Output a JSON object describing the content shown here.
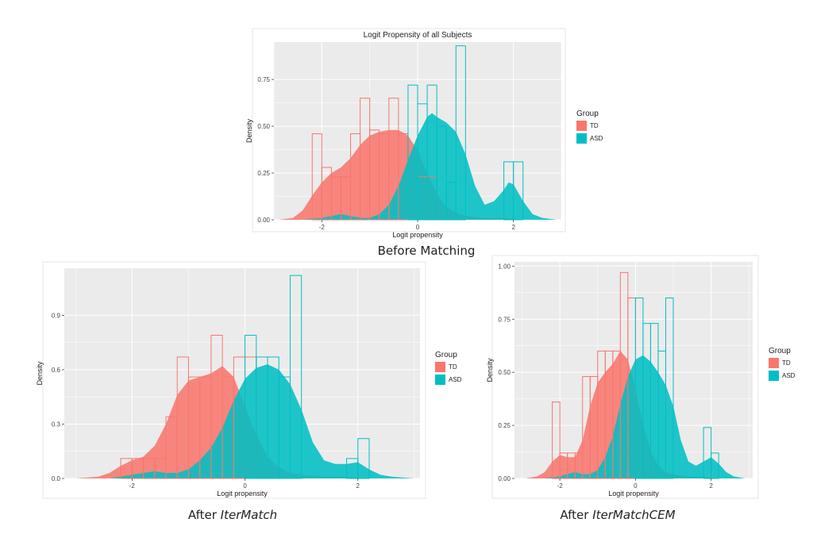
{
  "colors": {
    "TD": "#F8766D",
    "ASD": "#00BFC4",
    "panel": "#EBEBEB",
    "grid": "#FFFFFF"
  },
  "captions": {
    "top": "Before Matching",
    "bottom_left_prefix": "After ",
    "bottom_left_italic": "IterMatch",
    "bottom_right_prefix": "After ",
    "bottom_right_italic": "IterMatchCEM"
  },
  "chart_data": [
    {
      "type": "histogram+density",
      "title": "Logit Propensity of all Subjects",
      "xlabel": "Logit propensity",
      "ylabel": "Density",
      "xlim": [
        -3.0,
        3.0
      ],
      "ylim": [
        0,
        0.95
      ],
      "xticks": [
        -2,
        0,
        2
      ],
      "xtick_labels": [
        "-2",
        "0",
        "2"
      ],
      "yticks": [
        0.0,
        0.25,
        0.5,
        0.75
      ],
      "ytick_labels": [
        "0.00",
        "0.25",
        "0.50",
        "0.75"
      ],
      "legend": {
        "title": "Group",
        "entries": [
          "TD",
          "ASD"
        ],
        "placement": "right"
      },
      "bin_width": 0.2,
      "series": [
        {
          "name": "TD",
          "hist_x": [
            -2.1,
            -1.9,
            -1.7,
            -1.5,
            -1.3,
            -1.1,
            -0.9,
            -0.7,
            -0.5,
            -0.3,
            0.1,
            0.3
          ],
          "hist_y": [
            0.46,
            0.28,
            0.23,
            0.23,
            0.46,
            0.65,
            0.48,
            0.46,
            0.65,
            0.46,
            0.23,
            0.23
          ],
          "density_x": [
            -2.9,
            -2.6,
            -2.4,
            -2.2,
            -2.0,
            -1.8,
            -1.6,
            -1.4,
            -1.2,
            -1.0,
            -0.8,
            -0.6,
            -0.4,
            -0.2,
            0.0,
            0.2,
            0.4,
            0.6,
            0.8,
            1.0,
            1.4,
            1.8,
            2.2,
            2.6
          ],
          "density_y": [
            0.0,
            0.01,
            0.05,
            0.13,
            0.2,
            0.25,
            0.28,
            0.33,
            0.4,
            0.45,
            0.47,
            0.48,
            0.48,
            0.45,
            0.37,
            0.25,
            0.14,
            0.07,
            0.04,
            0.02,
            0.01,
            0.01,
            0.0,
            0.0
          ]
        },
        {
          "name": "ASD",
          "hist_x": [
            -0.1,
            0.1,
            0.3,
            0.5,
            0.7,
            0.9,
            1.9,
            2.1
          ],
          "hist_y": [
            0.72,
            0.62,
            0.72,
            0.5,
            0.2,
            0.93,
            0.31,
            0.31
          ],
          "density_x": [
            -2.9,
            -2.4,
            -2.0,
            -1.8,
            -1.6,
            -1.4,
            -1.2,
            -1.0,
            -0.8,
            -0.6,
            -0.4,
            -0.2,
            0.0,
            0.2,
            0.3,
            0.4,
            0.6,
            0.8,
            1.0,
            1.2,
            1.4,
            1.6,
            1.8,
            1.9,
            2.0,
            2.2,
            2.4,
            2.6,
            2.9
          ],
          "density_y": [
            0.0,
            0.0,
            0.01,
            0.02,
            0.03,
            0.02,
            0.01,
            0.01,
            0.03,
            0.08,
            0.18,
            0.32,
            0.45,
            0.55,
            0.57,
            0.55,
            0.52,
            0.47,
            0.35,
            0.18,
            0.08,
            0.1,
            0.16,
            0.2,
            0.19,
            0.1,
            0.03,
            0.01,
            0.0
          ]
        }
      ]
    },
    {
      "type": "histogram+density",
      "xlabel": "Logit propensity",
      "ylabel": "Density",
      "xlim": [
        -3.2,
        3.1
      ],
      "ylim": [
        0,
        1.16
      ],
      "xticks": [
        -2,
        0,
        2
      ],
      "xtick_labels": [
        "-2",
        "0",
        "2"
      ],
      "yticks": [
        0.0,
        0.3,
        0.6,
        0.9
      ],
      "ytick_labels": [
        "0.0",
        "0.3",
        "0.6",
        "0.9"
      ],
      "legend": {
        "title": "Group",
        "entries": [
          "TD",
          "ASD"
        ],
        "placement": "right"
      },
      "bin_width": 0.2,
      "series": [
        {
          "name": "TD",
          "hist_x": [
            -2.1,
            -1.9,
            -1.7,
            -1.5,
            -1.3,
            -1.1,
            -0.9,
            -0.7,
            -0.5,
            -0.3,
            -0.1,
            0.1
          ],
          "hist_y": [
            0.11,
            0.11,
            0.11,
            0.11,
            0.34,
            0.67,
            0.56,
            0.56,
            0.79,
            0.56,
            0.67,
            0.67
          ],
          "density_x": [
            -3.0,
            -2.6,
            -2.4,
            -2.2,
            -2.0,
            -1.8,
            -1.6,
            -1.4,
            -1.2,
            -1.0,
            -0.8,
            -0.6,
            -0.4,
            -0.2,
            0.0,
            0.2,
            0.4,
            0.6,
            0.8,
            1.0,
            1.4,
            1.8,
            2.2,
            2.6
          ],
          "density_y": [
            0.0,
            0.01,
            0.03,
            0.07,
            0.1,
            0.12,
            0.18,
            0.3,
            0.46,
            0.54,
            0.56,
            0.58,
            0.62,
            0.56,
            0.4,
            0.24,
            0.12,
            0.06,
            0.03,
            0.02,
            0.01,
            0.01,
            0.0,
            0.0
          ]
        },
        {
          "name": "ASD",
          "hist_x": [
            0.1,
            0.3,
            0.5,
            0.7,
            0.9,
            1.9,
            2.1
          ],
          "hist_y": [
            0.79,
            0.67,
            0.67,
            0.56,
            1.12,
            0.11,
            0.22
          ],
          "density_x": [
            -3.0,
            -2.4,
            -2.0,
            -1.8,
            -1.6,
            -1.4,
            -1.2,
            -1.0,
            -0.8,
            -0.6,
            -0.4,
            -0.2,
            0.0,
            0.2,
            0.4,
            0.6,
            0.8,
            1.0,
            1.2,
            1.4,
            1.6,
            1.8,
            2.0,
            2.2,
            2.4,
            2.6,
            3.0
          ],
          "density_y": [
            0.0,
            0.0,
            0.02,
            0.03,
            0.04,
            0.03,
            0.03,
            0.05,
            0.1,
            0.17,
            0.28,
            0.43,
            0.55,
            0.61,
            0.63,
            0.6,
            0.52,
            0.38,
            0.2,
            0.1,
            0.08,
            0.08,
            0.09,
            0.05,
            0.02,
            0.01,
            0.0
          ]
        }
      ]
    },
    {
      "type": "histogram+density",
      "xlabel": "Logit propensity",
      "ylabel": "Density",
      "xlim": [
        -3.2,
        3.1
      ],
      "ylim": [
        0,
        1.02
      ],
      "xticks": [
        -2,
        0,
        2
      ],
      "xtick_labels": [
        "-2",
        "0",
        "2"
      ],
      "yticks": [
        0.0,
        0.25,
        0.5,
        0.75,
        1.0
      ],
      "ytick_labels": [
        "0.00",
        "0.25",
        "0.50",
        "0.75",
        "1.00"
      ],
      "legend": {
        "title": "Group",
        "entries": [
          "TD",
          "ASD"
        ],
        "placement": "right"
      },
      "bin_width": 0.2,
      "series": [
        {
          "name": "TD",
          "hist_x": [
            -2.1,
            -1.9,
            -1.7,
            -1.5,
            -1.3,
            -1.1,
            -0.9,
            -0.7,
            -0.5,
            -0.3,
            -0.1
          ],
          "hist_y": [
            0.36,
            0.12,
            0.12,
            0.12,
            0.48,
            0.48,
            0.6,
            0.6,
            0.6,
            0.97,
            0.85
          ],
          "density_x": [
            -2.9,
            -2.6,
            -2.4,
            -2.2,
            -2.0,
            -1.8,
            -1.6,
            -1.4,
            -1.2,
            -1.0,
            -0.8,
            -0.6,
            -0.4,
            -0.2,
            0.0,
            0.2,
            0.4,
            0.6,
            0.8,
            1.0,
            1.4,
            1.8,
            2.2,
            2.6
          ],
          "density_y": [
            0.0,
            0.01,
            0.03,
            0.08,
            0.11,
            0.1,
            0.1,
            0.18,
            0.34,
            0.45,
            0.5,
            0.54,
            0.6,
            0.56,
            0.42,
            0.26,
            0.13,
            0.06,
            0.03,
            0.02,
            0.01,
            0.01,
            0.0,
            0.0
          ]
        },
        {
          "name": "ASD",
          "hist_x": [
            0.1,
            0.3,
            0.5,
            0.7,
            0.9,
            1.9,
            2.1
          ],
          "hist_y": [
            0.85,
            0.73,
            0.73,
            0.6,
            0.85,
            0.24,
            0.12
          ],
          "density_x": [
            -2.9,
            -2.4,
            -2.0,
            -1.8,
            -1.6,
            -1.4,
            -1.2,
            -1.0,
            -0.8,
            -0.6,
            -0.4,
            -0.2,
            0.0,
            0.2,
            0.4,
            0.6,
            0.8,
            1.0,
            1.2,
            1.4,
            1.6,
            1.8,
            2.0,
            2.2,
            2.4,
            2.6,
            2.9
          ],
          "density_y": [
            0.0,
            0.0,
            0.01,
            0.02,
            0.03,
            0.02,
            0.02,
            0.04,
            0.1,
            0.2,
            0.35,
            0.48,
            0.56,
            0.58,
            0.55,
            0.5,
            0.44,
            0.34,
            0.18,
            0.08,
            0.06,
            0.08,
            0.1,
            0.07,
            0.03,
            0.01,
            0.0
          ]
        }
      ]
    }
  ]
}
